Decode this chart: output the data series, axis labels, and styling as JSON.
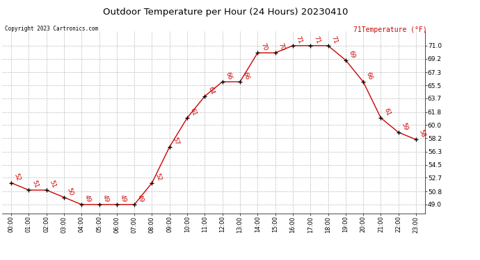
{
  "title": "Outdoor Temperature per Hour (24 Hours) 20230410",
  "copyright": "Copyright 2023 Cartronics.com",
  "legend_label": "Temperature (°F)",
  "hours": [
    0,
    1,
    2,
    3,
    4,
    5,
    6,
    7,
    8,
    9,
    10,
    11,
    12,
    13,
    14,
    15,
    16,
    17,
    18,
    19,
    20,
    21,
    22,
    23
  ],
  "temps": [
    52,
    51,
    51,
    50,
    49,
    49,
    49,
    49,
    52,
    57,
    61,
    64,
    66,
    66,
    70,
    70,
    71,
    71,
    71,
    69,
    66,
    61,
    59,
    58
  ],
  "hour_labels": [
    "00:00",
    "01:00",
    "02:00",
    "03:00",
    "04:00",
    "05:00",
    "06:00",
    "07:00",
    "08:00",
    "09:00",
    "10:00",
    "11:00",
    "12:00",
    "13:00",
    "14:00",
    "15:00",
    "16:00",
    "17:00",
    "18:00",
    "19:00",
    "20:00",
    "21:00",
    "22:00",
    "23:00"
  ],
  "yticks": [
    49.0,
    50.8,
    52.7,
    54.5,
    56.3,
    58.2,
    60.0,
    61.8,
    63.7,
    65.5,
    67.3,
    69.2,
    71.0
  ],
  "ytick_labels": [
    "49.0",
    "50.8",
    "52.7",
    "54.5",
    "56.3",
    "58.2",
    "60.0",
    "61.8",
    "63.7",
    "65.5",
    "67.3",
    "69.2",
    "71.0"
  ],
  "ylim": [
    47.8,
    73.0
  ],
  "xlim": [
    -0.5,
    23.5
  ],
  "line_color": "#cc0000",
  "marker_color": "#000000",
  "label_color": "#cc0000",
  "title_color": "#000000",
  "copyright_color": "#000000",
  "background_color": "#ffffff",
  "grid_color": "#bbbbbb",
  "legend_value_color": "#cc0000",
  "legend_value": "71"
}
